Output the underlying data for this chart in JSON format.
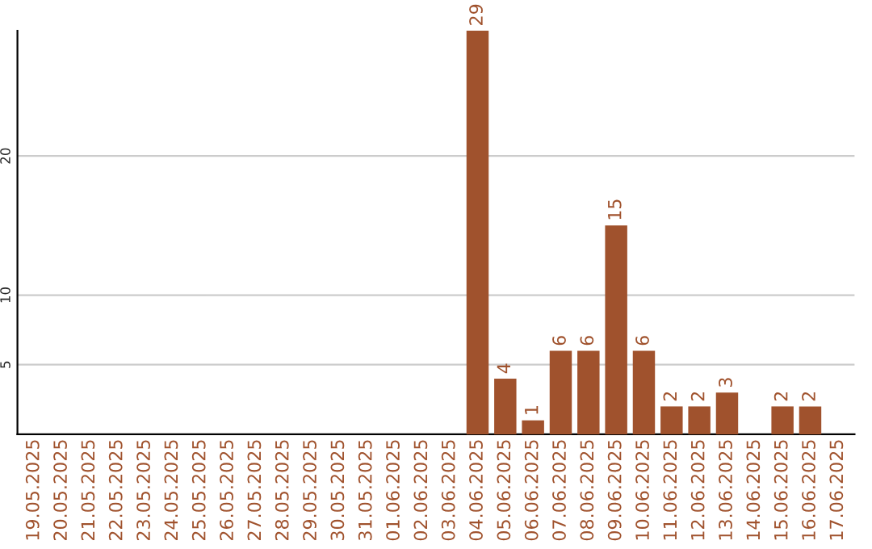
{
  "chart_data": {
    "type": "bar",
    "categories": [
      "19.05.2025",
      "20.05.2025",
      "21.05.2025",
      "22.05.2025",
      "23.05.2025",
      "24.05.2025",
      "25.05.2025",
      "26.05.2025",
      "27.05.2025",
      "28.05.2025",
      "29.05.2025",
      "30.05.2025",
      "31.05.2025",
      "01.06.2025",
      "02.06.2025",
      "03.06.2025",
      "04.06.2025",
      "05.06.2025",
      "06.06.2025",
      "07.06.2025",
      "08.06.2025",
      "09.06.2025",
      "10.06.2025",
      "11.06.2025",
      "12.06.2025",
      "13.06.2025",
      "14.06.2025",
      "15.06.2025",
      "16.06.2025",
      "17.06.2025"
    ],
    "values": [
      0,
      0,
      0,
      0,
      0,
      0,
      0,
      0,
      0,
      0,
      0,
      0,
      0,
      0,
      0,
      0,
      29,
      4,
      1,
      6,
      6,
      15,
      6,
      2,
      2,
      3,
      0,
      2,
      2,
      0
    ],
    "value_labels": [
      null,
      null,
      null,
      null,
      null,
      null,
      null,
      null,
      null,
      null,
      null,
      null,
      null,
      null,
      null,
      null,
      "29",
      "4",
      "1",
      "6",
      "6",
      "15",
      "6",
      "2",
      "2",
      "3",
      null,
      "2",
      "2",
      null
    ],
    "color": "#a0522d",
    "ylim": [
      0,
      29
    ],
    "yticks": [
      5,
      10,
      20
    ],
    "grid": "y"
  }
}
